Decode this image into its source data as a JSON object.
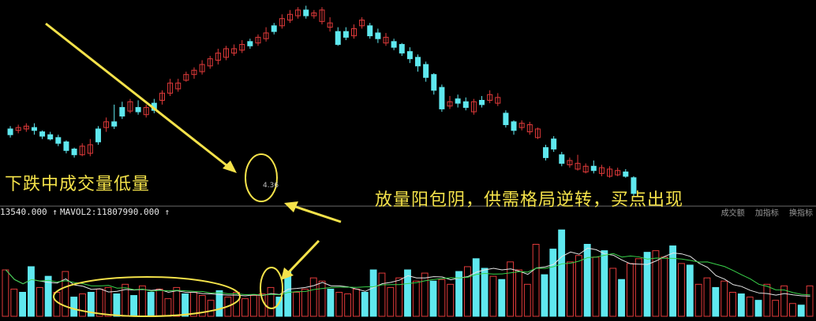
{
  "annotations": {
    "left": "下跌中成交量低量",
    "right": "放量阳包阴，供需格局逆转，买点出现"
  },
  "indicator": {
    "left_value": "13540.000 ↑",
    "mavol_text": "MAVOL2:11807990.000 ↑",
    "buttons": [
      "成交额",
      "加指标",
      "换指标"
    ]
  },
  "colors": {
    "up": "#e03a3a",
    "down": "#5fe8ef",
    "annotation": "#f4e24a",
    "ma_white": "#e6e6e6",
    "ma_green": "#39d24a",
    "separator": "#6b6b6b"
  },
  "chart_data": {
    "type": "candlestick",
    "low_label": "4.36",
    "candles": [
      [
        62,
        70,
        58,
        74,
        1
      ],
      [
        68,
        72,
        64,
        76,
        0
      ],
      [
        70,
        74,
        66,
        78,
        0
      ],
      [
        68,
        72,
        62,
        78,
        1
      ],
      [
        60,
        66,
        56,
        68,
        1
      ],
      [
        56,
        62,
        54,
        66,
        1
      ],
      [
        50,
        58,
        46,
        62,
        1
      ],
      [
        40,
        52,
        36,
        54,
        1
      ],
      [
        34,
        42,
        30,
        44,
        1
      ],
      [
        46,
        34,
        32,
        50,
        0
      ],
      [
        36,
        48,
        32,
        56,
        0
      ],
      [
        70,
        52,
        48,
        74,
        1
      ],
      [
        72,
        80,
        66,
        86,
        0
      ],
      [
        80,
        74,
        70,
        104,
        1
      ],
      [
        100,
        88,
        84,
        108,
        1
      ],
      [
        95,
        108,
        92,
        112,
        0
      ],
      [
        100,
        94,
        90,
        110,
        1
      ],
      [
        90,
        100,
        86,
        104,
        0
      ],
      [
        106,
        96,
        92,
        112,
        1
      ],
      [
        110,
        120,
        104,
        124,
        0
      ],
      [
        120,
        134,
        116,
        140,
        0
      ],
      [
        126,
        134,
        122,
        140,
        0
      ],
      [
        138,
        146,
        136,
        150,
        0
      ],
      [
        146,
        152,
        140,
        156,
        0
      ],
      [
        150,
        160,
        146,
        166,
        0
      ],
      [
        158,
        168,
        154,
        172,
        0
      ],
      [
        166,
        176,
        160,
        182,
        0
      ],
      [
        170,
        182,
        166,
        186,
        0
      ],
      [
        176,
        182,
        172,
        188,
        0
      ],
      [
        180,
        188,
        176,
        194,
        0
      ],
      [
        186,
        192,
        182,
        196,
        1
      ],
      [
        190,
        198,
        186,
        202,
        0
      ],
      [
        196,
        204,
        192,
        212,
        0
      ],
      [
        206,
        214,
        202,
        218,
        1
      ],
      [
        214,
        224,
        210,
        230,
        0
      ],
      [
        222,
        230,
        218,
        236,
        0
      ],
      [
        228,
        236,
        224,
        240,
        0
      ],
      [
        236,
        228,
        224,
        242,
        1
      ],
      [
        228,
        232,
        224,
        236,
        0
      ],
      [
        220,
        236,
        216,
        240,
        0
      ],
      [
        212,
        218,
        206,
        226,
        0
      ],
      [
        188,
        206,
        186,
        212,
        1
      ],
      [
        206,
        198,
        194,
        212,
        1
      ],
      [
        200,
        210,
        196,
        216,
        0
      ],
      [
        214,
        222,
        210,
        226,
        0
      ],
      [
        200,
        214,
        196,
        218,
        1
      ],
      [
        196,
        204,
        190,
        210,
        1
      ],
      [
        190,
        198,
        186,
        204,
        0
      ],
      [
        184,
        192,
        180,
        196,
        1
      ],
      [
        176,
        188,
        172,
        190,
        1
      ],
      [
        168,
        178,
        162,
        184,
        1
      ],
      [
        158,
        170,
        150,
        174,
        1
      ],
      [
        142,
        160,
        136,
        164,
        1
      ],
      [
        124,
        146,
        118,
        148,
        1
      ],
      [
        98,
        128,
        94,
        132,
        1
      ],
      [
        102,
        108,
        98,
        116,
        0
      ],
      [
        106,
        112,
        100,
        118,
        1
      ],
      [
        100,
        108,
        96,
        114,
        1
      ],
      [
        94,
        108,
        90,
        112,
        0
      ],
      [
        110,
        104,
        100,
        116,
        1
      ],
      [
        118,
        110,
        106,
        124,
        0
      ],
      [
        106,
        114,
        102,
        120,
        0
      ],
      [
        76,
        92,
        72,
        96,
        1
      ],
      [
        68,
        80,
        62,
        82,
        1
      ],
      [
        72,
        78,
        68,
        82,
        0
      ],
      [
        66,
        76,
        62,
        80,
        0
      ],
      [
        58,
        70,
        56,
        72,
        0
      ],
      [
        30,
        44,
        26,
        48,
        1
      ],
      [
        56,
        42,
        38,
        60,
        1
      ],
      [
        22,
        34,
        18,
        38,
        1
      ],
      [
        20,
        26,
        16,
        30,
        0
      ],
      [
        14,
        22,
        12,
        34,
        0
      ],
      [
        10,
        18,
        8,
        22,
        0
      ],
      [
        12,
        18,
        8,
        26,
        1
      ],
      [
        8,
        16,
        4,
        20,
        0
      ],
      [
        4,
        14,
        2,
        18,
        0
      ],
      [
        6,
        12,
        4,
        16,
        0
      ],
      [
        4,
        10,
        2,
        14,
        1
      ],
      [
        -20,
        2,
        -24,
        4,
        1
      ]
    ],
    "volume": [
      [
        58,
        0
      ],
      [
        34,
        0
      ],
      [
        30,
        1
      ],
      [
        62,
        1
      ],
      [
        36,
        0
      ],
      [
        50,
        1
      ],
      [
        30,
        0
      ],
      [
        56,
        0
      ],
      [
        24,
        1
      ],
      [
        28,
        0
      ],
      [
        30,
        1
      ],
      [
        34,
        0
      ],
      [
        36,
        0
      ],
      [
        28,
        1
      ],
      [
        40,
        0
      ],
      [
        26,
        1
      ],
      [
        38,
        0
      ],
      [
        30,
        1
      ],
      [
        34,
        0
      ],
      [
        22,
        0
      ],
      [
        36,
        0
      ],
      [
        28,
        1
      ],
      [
        30,
        0
      ],
      [
        26,
        0
      ],
      [
        20,
        0
      ],
      [
        32,
        1
      ],
      [
        24,
        0
      ],
      [
        30,
        0
      ],
      [
        22,
        0
      ],
      [
        26,
        0
      ],
      [
        28,
        0
      ],
      [
        36,
        0
      ],
      [
        24,
        1
      ],
      [
        56,
        1
      ],
      [
        30,
        0
      ],
      [
        34,
        0
      ],
      [
        48,
        0
      ],
      [
        44,
        0
      ],
      [
        34,
        1
      ],
      [
        30,
        0
      ],
      [
        28,
        0
      ],
      [
        34,
        0
      ],
      [
        30,
        1
      ],
      [
        58,
        1
      ],
      [
        54,
        0
      ],
      [
        36,
        0
      ],
      [
        48,
        0
      ],
      [
        58,
        1
      ],
      [
        44,
        0
      ],
      [
        54,
        0
      ],
      [
        44,
        1
      ],
      [
        46,
        0
      ],
      [
        40,
        0
      ],
      [
        56,
        1
      ],
      [
        62,
        0
      ],
      [
        72,
        1
      ],
      [
        60,
        1
      ],
      [
        50,
        0
      ],
      [
        46,
        1
      ],
      [
        68,
        0
      ],
      [
        58,
        0
      ],
      [
        40,
        0
      ],
      [
        90,
        0
      ],
      [
        52,
        1
      ],
      [
        84,
        1
      ],
      [
        108,
        1
      ],
      [
        68,
        0
      ],
      [
        76,
        0
      ],
      [
        90,
        1
      ],
      [
        74,
        0
      ],
      [
        82,
        1
      ],
      [
        60,
        0
      ],
      [
        46,
        1
      ],
      [
        66,
        0
      ],
      [
        72,
        0
      ],
      [
        80,
        1
      ],
      [
        82,
        0
      ],
      [
        74,
        0
      ],
      [
        88,
        1
      ],
      [
        66,
        0
      ],
      [
        64,
        1
      ],
      [
        40,
        0
      ],
      [
        48,
        0
      ],
      [
        36,
        1
      ],
      [
        44,
        0
      ],
      [
        30,
        0
      ],
      [
        28,
        1
      ],
      [
        24,
        0
      ],
      [
        20,
        1
      ],
      [
        40,
        0
      ],
      [
        20,
        0
      ],
      [
        38,
        0
      ],
      [
        16,
        0
      ],
      [
        14,
        1
      ],
      [
        38,
        0
      ]
    ]
  }
}
